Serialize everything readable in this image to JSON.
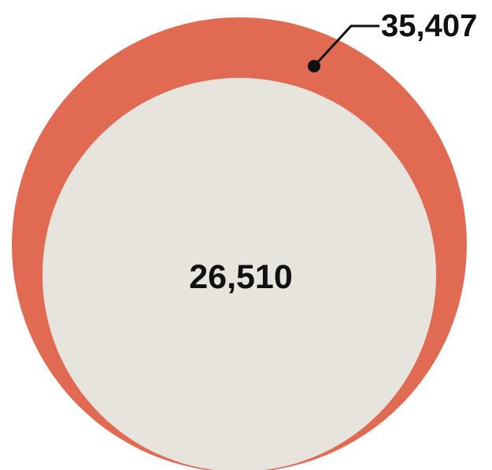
{
  "chart_data": {
    "type": "nested-circles",
    "items": [
      {
        "label": "35,407",
        "value": 35407,
        "color": "#E06A52"
      },
      {
        "label": "26,510",
        "value": 26510,
        "color": "#E6E4DD"
      }
    ],
    "annotation_color": "#111111"
  }
}
